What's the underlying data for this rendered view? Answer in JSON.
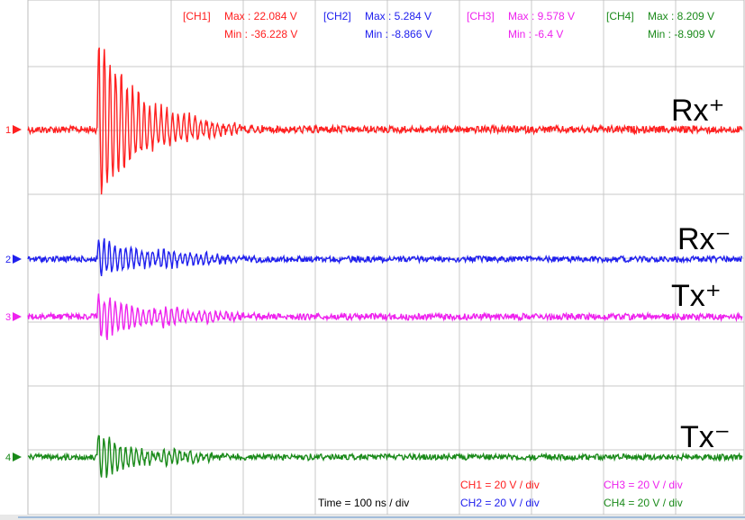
{
  "stats": [
    {
      "tag": "[CH1]",
      "max": "Max : 22.084 V",
      "min": "Min : -36.228 V",
      "color": "#ff2020"
    },
    {
      "tag": "[CH2]",
      "max": "Max : 5.284 V",
      "min": "Min : -8.866 V",
      "color": "#2020ee"
    },
    {
      "tag": "[CH3]",
      "max": "Max : 9.578 V",
      "min": "Min : -6.4 V",
      "color": "#ee22ee"
    },
    {
      "tag": "[CH4]",
      "max": "Max : 8.209 V",
      "min": "Min : -8.909 V",
      "color": "#1a8a1a"
    }
  ],
  "scales": [
    {
      "text": "CH1 = 20 V / div",
      "color": "#ff2020"
    },
    {
      "text": "CH2 = 20 V / div",
      "color": "#2020ee"
    },
    {
      "text": "CH3 = 20 V / div",
      "color": "#ee22ee"
    },
    {
      "text": "CH4 = 20 V / div",
      "color": "#1a8a1a"
    }
  ],
  "timebase": "Time = 100 ns / div",
  "chart_data": {
    "type": "line",
    "grid": true,
    "series": [
      {
        "name": "Rx⁺",
        "marker": "1",
        "color": "#ff2020",
        "max_v": 22.084,
        "min_v": -36.228,
        "volts_per_div": 20
      },
      {
        "name": "Rx⁻",
        "marker": "2",
        "color": "#2020ee",
        "max_v": 5.284,
        "min_v": -8.866,
        "volts_per_div": 20
      },
      {
        "name": "Tx⁺",
        "marker": "3",
        "color": "#ee22ee",
        "max_v": 9.578,
        "min_v": -6.4,
        "volts_per_div": 20
      },
      {
        "name": "Tx⁻",
        "marker": "4",
        "color": "#1a8a1a",
        "max_v": 8.209,
        "min_v": -8.909,
        "volts_per_div": 20
      }
    ]
  }
}
